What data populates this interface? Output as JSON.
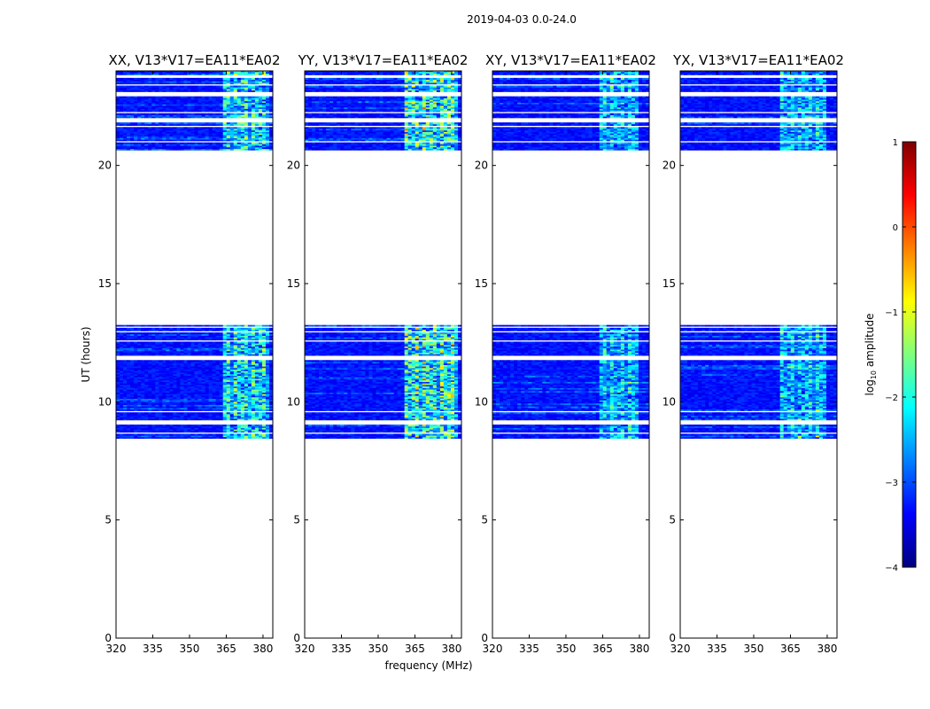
{
  "chart_data": {
    "type": "heatmap",
    "suptitle": "2019-04-03 0.0-24.0",
    "xlabel": "frequency (MHz)",
    "ylabel": "UT (hours)",
    "xlim": [
      320,
      384
    ],
    "ylim": [
      0,
      24
    ],
    "xticks": [
      320,
      335,
      350,
      365,
      380
    ],
    "xtick_labels": [
      "320",
      "335",
      "350",
      "365",
      "380"
    ],
    "yticks": [
      0,
      5,
      10,
      15,
      20
    ],
    "ytick_labels": [
      "0",
      "5",
      "10",
      "15",
      "20"
    ],
    "panels": [
      {
        "title": "XX, V13*V17=EA11*EA02",
        "bright_band_mhz": [
          364,
          382
        ],
        "bright_level": 0.45
      },
      {
        "title": "YY, V13*V17=EA11*EA02",
        "bright_band_mhz": [
          361,
          383
        ],
        "bright_level": 0.55
      },
      {
        "title": "XY, V13*V17=EA11*EA02",
        "bright_band_mhz": [
          364,
          380
        ],
        "bright_level": 0.35
      },
      {
        "title": "YX, V13*V17=EA11*EA02",
        "bright_band_mhz": [
          361,
          380
        ],
        "bright_level": 0.35
      }
    ],
    "data_time_ranges_hours": [
      [
        8.45,
        13.25
      ],
      [
        20.65,
        24.0
      ]
    ],
    "gap_time_ranges_hours": [
      [
        8.62,
        8.68
      ],
      [
        9.02,
        9.22
      ],
      [
        9.58,
        9.62
      ],
      [
        9.92,
        9.97
      ],
      [
        10.2,
        10.23
      ],
      [
        11.78,
        11.95
      ],
      [
        12.2,
        12.23
      ],
      [
        12.55,
        12.62
      ],
      [
        12.93,
        13.0
      ],
      [
        13.12,
        13.17
      ],
      [
        20.98,
        21.01
      ],
      [
        21.28,
        21.31
      ],
      [
        21.65,
        21.7
      ],
      [
        21.85,
        22.0
      ],
      [
        22.22,
        22.3
      ],
      [
        22.58,
        22.62
      ],
      [
        22.95,
        23.1
      ],
      [
        23.4,
        23.45
      ],
      [
        23.7,
        23.85
      ]
    ],
    "colorbar": {
      "label": "log10 amplitude",
      "range": [
        -4,
        1
      ],
      "ticks": [
        1,
        0,
        -1,
        -2,
        -3,
        -4
      ],
      "tick_labels": [
        "1",
        "0",
        "−1",
        "−2",
        "−3",
        "−4"
      ],
      "colormap": "jet",
      "stops": [
        "#00007f",
        "#0000ff",
        "#007fff",
        "#00ffff",
        "#7fff7f",
        "#ffff00",
        "#ff7f00",
        "#ff0000",
        "#7f0000"
      ]
    }
  }
}
